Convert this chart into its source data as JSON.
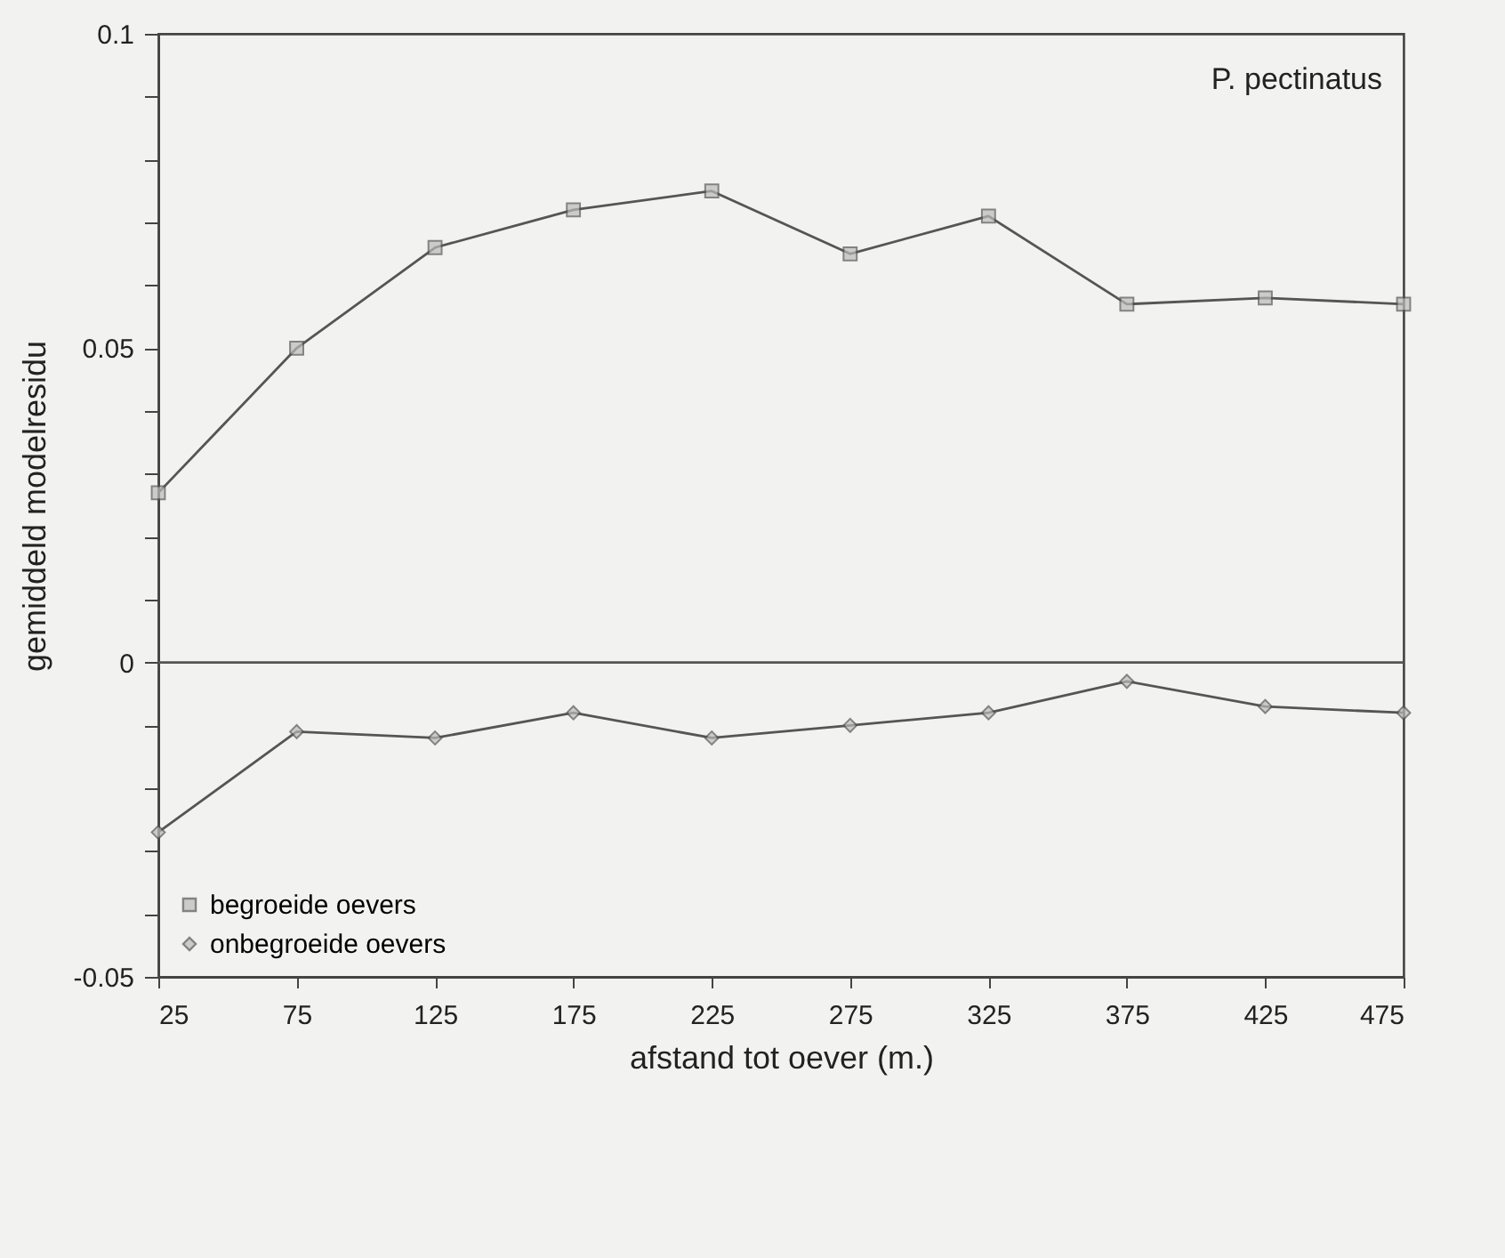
{
  "chart_data": {
    "type": "line",
    "xlabel": "afstand tot oever (m.)",
    "ylabel": "gemiddeld modelresidu",
    "annotations": [
      "P. pectinatus"
    ],
    "x": [
      25,
      75,
      125,
      175,
      225,
      275,
      325,
      375,
      425,
      475
    ],
    "series": [
      {
        "name": "begroeide oevers",
        "color": "#555555",
        "marker": "square",
        "values": [
          0.027,
          0.05,
          0.066,
          0.072,
          0.075,
          0.065,
          0.071,
          0.057,
          0.058,
          0.057
        ]
      },
      {
        "name": "onbegroeide oevers",
        "color": "#555555",
        "marker": "diamond",
        "values": [
          -0.027,
          -0.011,
          -0.012,
          -0.008,
          -0.012,
          -0.01,
          -0.008,
          -0.003,
          -0.007,
          -0.008
        ]
      }
    ],
    "xlim": [
      25,
      475
    ],
    "xticks": [
      25,
      75,
      125,
      175,
      225,
      275,
      325,
      375,
      425,
      475
    ],
    "ylim": [
      -0.05,
      0.1
    ],
    "yticks": [
      -0.05,
      {
        "value": -0.04,
        "label": null
      },
      {
        "value": -0.03,
        "label": null
      },
      {
        "value": -0.02,
        "label": null
      },
      {
        "value": -0.01,
        "label": null
      },
      0,
      {
        "value": 0.01,
        "label": null
      },
      {
        "value": 0.02,
        "label": null
      },
      {
        "value": 0.03,
        "label": null
      },
      {
        "value": 0.04,
        "label": null
      },
      0.05,
      {
        "value": 0.06,
        "label": null
      },
      {
        "value": 0.07,
        "label": null
      },
      {
        "value": 0.08,
        "label": null
      },
      {
        "value": 0.09,
        "label": null
      },
      0.1
    ],
    "ref_lines": [
      {
        "axis": "y",
        "value": 0,
        "color": "#555555"
      }
    ],
    "grid": false,
    "legend": "bottom left",
    "line_style": "solid"
  }
}
